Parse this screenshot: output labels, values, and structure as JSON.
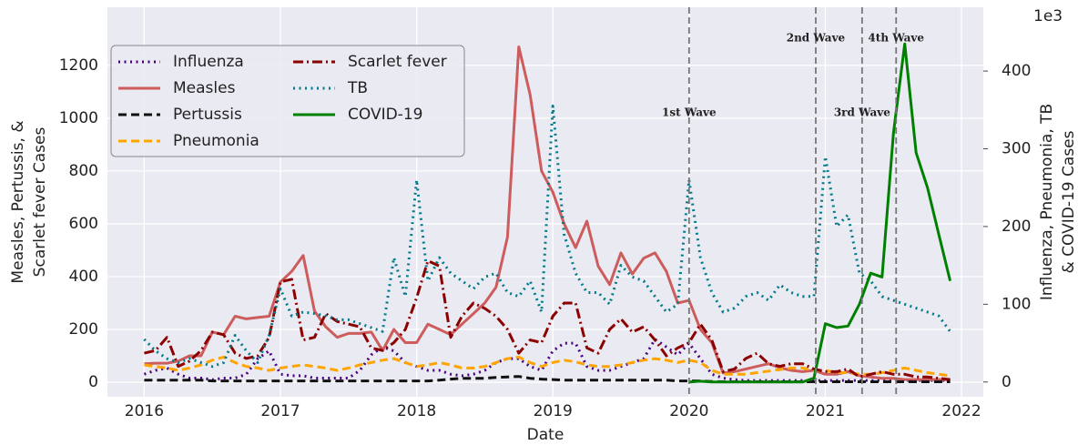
{
  "chart_data": {
    "type": "line",
    "xlabel": "Date",
    "ylabel": [
      "Measles, Pertussis, &",
      "Scarlet fever Cases"
    ],
    "y2label": [
      "Influenza, Pneumonia, TB",
      "& COVID-19 Cases"
    ],
    "y2_multiplier": "1e3",
    "x": [
      2016,
      2016.083,
      2016.167,
      2016.25,
      2016.333,
      2016.417,
      2016.5,
      2016.583,
      2016.667,
      2016.75,
      2016.833,
      2016.917,
      2017,
      2017.083,
      2017.167,
      2017.25,
      2017.333,
      2017.417,
      2017.5,
      2017.583,
      2017.667,
      2017.75,
      2017.833,
      2017.917,
      2018,
      2018.083,
      2018.167,
      2018.25,
      2018.333,
      2018.417,
      2018.5,
      2018.583,
      2018.667,
      2018.75,
      2018.833,
      2018.917,
      2019,
      2019.083,
      2019.167,
      2019.25,
      2019.333,
      2019.417,
      2019.5,
      2019.583,
      2019.667,
      2019.75,
      2019.833,
      2019.917,
      2020,
      2020.083,
      2020.167,
      2020.25,
      2020.333,
      2020.417,
      2020.5,
      2020.583,
      2020.667,
      2020.75,
      2020.833,
      2020.917,
      2021,
      2021.083,
      2021.167,
      2021.25,
      2021.333,
      2021.417,
      2021.5,
      2021.583,
      2021.667,
      2021.75,
      2021.833,
      2021.917
    ],
    "xlim": [
      2015.73,
      2022.16
    ],
    "xticks": [
      2016,
      2017,
      2018,
      2019,
      2020,
      2021,
      2022
    ],
    "ylim": [
      -55,
      1420
    ],
    "yticks": [
      0,
      200,
      400,
      600,
      800,
      1000,
      1200
    ],
    "y2lim": [
      -19,
      482
    ],
    "y2ticks": [
      0,
      100,
      200,
      300,
      400
    ],
    "grid": true,
    "legend": "upper left",
    "series": [
      {
        "name": "Influenza",
        "color": "#4b0082",
        "dash": "dotted",
        "axis": "y2",
        "values": [
          10,
          15,
          18,
          10,
          5,
          5,
          3,
          5,
          5,
          10,
          30,
          40,
          10,
          8,
          8,
          5,
          5,
          5,
          5,
          15,
          35,
          45,
          40,
          25,
          20,
          15,
          15,
          10,
          8,
          10,
          15,
          25,
          30,
          30,
          20,
          15,
          40,
          50,
          50,
          20,
          15,
          15,
          20,
          25,
          30,
          55,
          45,
          35,
          50,
          30,
          10,
          5,
          3,
          2,
          2,
          2,
          2,
          2,
          2,
          2,
          2,
          2,
          2,
          2,
          2,
          2,
          2,
          2,
          2,
          2,
          2,
          2
        ]
      },
      {
        "name": "Measles",
        "color": "#cd5c5c",
        "dash": "solid",
        "values": [
          70,
          72,
          72,
          80,
          100,
          100,
          190,
          180,
          250,
          240,
          245,
          250,
          380,
          420,
          480,
          270,
          210,
          170,
          185,
          185,
          190,
          120,
          200,
          150,
          150,
          220,
          200,
          180,
          220,
          260,
          300,
          360,
          550,
          1270,
          1090,
          800,
          720,
          600,
          510,
          610,
          440,
          370,
          490,
          410,
          470,
          490,
          420,
          300,
          310,
          200,
          150,
          35,
          40,
          50,
          60,
          70,
          55,
          45,
          40,
          45,
          30,
          30,
          40,
          25,
          20,
          15,
          15,
          10,
          10,
          10,
          10,
          10
        ]
      },
      {
        "name": "Pertussis",
        "color": "#111111",
        "dash": "dashed",
        "values": [
          8,
          8,
          8,
          8,
          8,
          8,
          5,
          5,
          5,
          5,
          5,
          5,
          5,
          5,
          5,
          5,
          5,
          5,
          5,
          5,
          5,
          5,
          5,
          5,
          5,
          5,
          8,
          12,
          15,
          15,
          15,
          18,
          20,
          22,
          15,
          12,
          10,
          8,
          8,
          8,
          8,
          8,
          8,
          8,
          8,
          8,
          8,
          5,
          5,
          5,
          3,
          2,
          2,
          2,
          2,
          2,
          2,
          2,
          2,
          2,
          2,
          2,
          2,
          2,
          2,
          2,
          2,
          2,
          2,
          2,
          2,
          2
        ]
      },
      {
        "name": "Pneumonia",
        "color": "#ffa500",
        "dash": "dashed",
        "axis": "y2",
        "values": [
          22,
          20,
          18,
          15,
          18,
          22,
          28,
          32,
          25,
          20,
          18,
          15,
          18,
          20,
          22,
          20,
          18,
          15,
          18,
          22,
          25,
          28,
          30,
          25,
          20,
          22,
          25,
          22,
          18,
          18,
          20,
          25,
          30,
          32,
          25,
          20,
          25,
          28,
          26,
          22,
          20,
          20,
          22,
          25,
          28,
          30,
          28,
          25,
          28,
          25,
          15,
          10,
          10,
          10,
          12,
          14,
          16,
          18,
          18,
          15,
          15,
          12,
          12,
          10,
          10,
          12,
          15,
          18,
          15,
          12,
          10,
          8
        ]
      },
      {
        "name": "Scarlet fever",
        "color": "#8b0000",
        "dash": "dashdot",
        "values": [
          110,
          120,
          170,
          60,
          80,
          120,
          190,
          180,
          110,
          90,
          100,
          170,
          380,
          390,
          160,
          170,
          260,
          230,
          220,
          210,
          130,
          120,
          150,
          200,
          320,
          460,
          440,
          170,
          250,
          300,
          280,
          250,
          200,
          110,
          160,
          150,
          250,
          300,
          300,
          130,
          110,
          200,
          240,
          190,
          210,
          160,
          100,
          130,
          150,
          220,
          160,
          40,
          50,
          90,
          110,
          70,
          60,
          70,
          70,
          50,
          40,
          40,
          50,
          20,
          30,
          40,
          30,
          30,
          20,
          20,
          15,
          10
        ]
      },
      {
        "name": "TB",
        "color": "#007a8a",
        "dash": "dotted",
        "axis": "y2",
        "values": [
          55,
          40,
          30,
          25,
          30,
          25,
          20,
          25,
          60,
          40,
          25,
          60,
          120,
          85,
          90,
          88,
          85,
          80,
          80,
          75,
          70,
          65,
          160,
          110,
          260,
          130,
          160,
          140,
          130,
          120,
          135,
          140,
          115,
          110,
          130,
          90,
          355,
          190,
          140,
          115,
          115,
          100,
          150,
          135,
          130,
          110,
          90,
          100,
          260,
          160,
          115,
          90,
          95,
          110,
          115,
          105,
          125,
          115,
          110,
          110,
          290,
          200,
          215,
          140,
          130,
          110,
          105,
          100,
          95,
          90,
          85,
          65
        ]
      },
      {
        "name": "COVID-19",
        "color": "#008000",
        "dash": "solid",
        "axis": "y2",
        "values": [
          null,
          null,
          null,
          null,
          null,
          null,
          null,
          null,
          null,
          null,
          null,
          null,
          null,
          null,
          null,
          null,
          null,
          null,
          null,
          null,
          null,
          null,
          null,
          null,
          null,
          null,
          null,
          null,
          null,
          null,
          null,
          null,
          null,
          null,
          null,
          null,
          null,
          null,
          null,
          null,
          null,
          null,
          null,
          null,
          null,
          null,
          null,
          null,
          0,
          1,
          0,
          0,
          0,
          0,
          0,
          0,
          0,
          0,
          0,
          5,
          75,
          70,
          72,
          100,
          140,
          135,
          320,
          435,
          295,
          250,
          190,
          130
        ]
      }
    ],
    "annotations": [
      {
        "x": 2020.0,
        "text": "1st Wave"
      },
      {
        "x": 2020.93,
        "text": "2nd Wave"
      },
      {
        "x": 2021.27,
        "text": "3rd Wave"
      },
      {
        "x": 2021.52,
        "text": "4th Wave"
      }
    ]
  }
}
